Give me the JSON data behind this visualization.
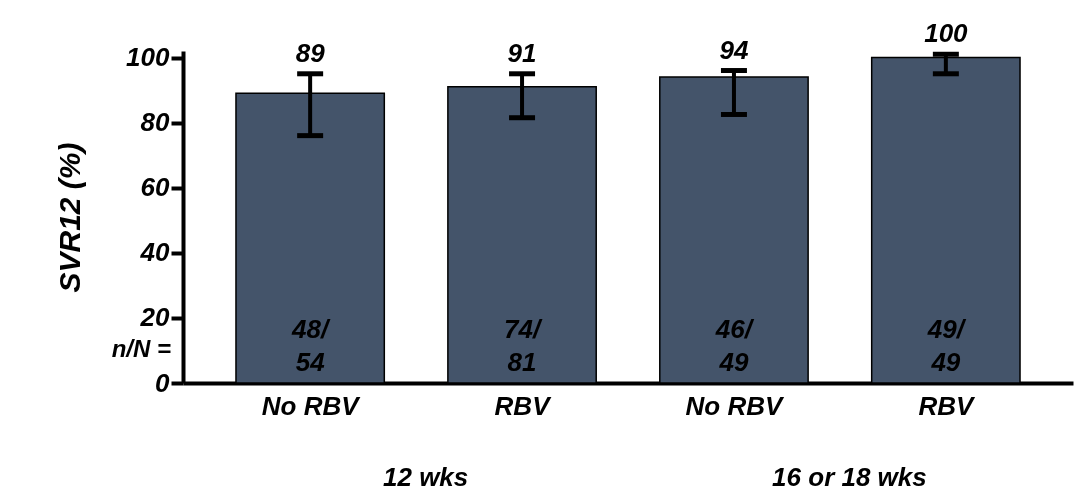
{
  "chart_data": {
    "type": "bar",
    "ylabel": "SVR12 (%)",
    "categories": [
      "No RBV",
      "RBV",
      "No RBV",
      "RBV"
    ],
    "values": [
      89,
      91,
      94,
      100
    ],
    "color": "#44546a",
    "errors": [
      [
        76,
        95
      ],
      [
        81.5,
        95
      ],
      [
        82.5,
        96
      ],
      [
        95,
        101
      ]
    ],
    "data_labels": true,
    "ylim": [
      0,
      102
    ],
    "yticks": [
      0,
      20,
      40,
      60,
      80,
      100
    ],
    "grid": false,
    "annotations": [
      "n/N =",
      "48/54",
      "74/81",
      "46/49",
      "49/49",
      "12 wks",
      "16 or 18 wks"
    ]
  }
}
